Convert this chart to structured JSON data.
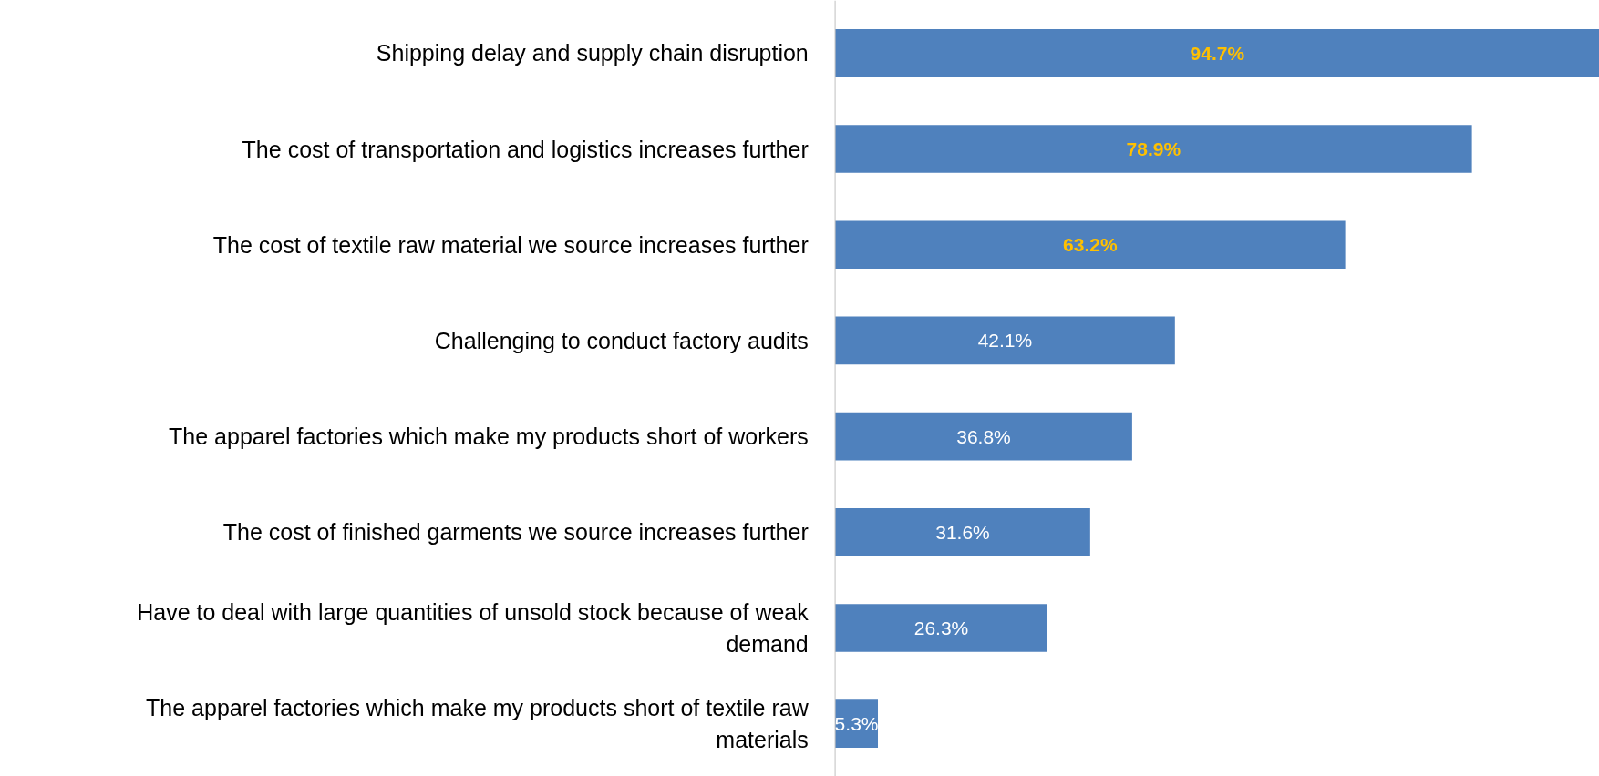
{
  "chart_data": {
    "type": "bar",
    "orientation": "horizontal",
    "categories": [
      "Shipping delay and supply chain disruption",
      "The cost of transportation and logistics increases further",
      "The cost of textile raw material we source increases further",
      "Challenging to conduct factory audits",
      "The apparel factories which make my products short of workers",
      "The cost of finished garments we source increases further",
      "Have to deal with large quantities of unsold stock because of weak demand",
      "The apparel factories which make my products short of textile raw materials"
    ],
    "values": [
      94.7,
      78.9,
      63.2,
      42.1,
      36.8,
      31.6,
      26.3,
      5.3
    ],
    "value_labels": [
      "94.7%",
      "78.9%",
      "63.2%",
      "42.1%",
      "36.8%",
      "31.6%",
      "26.3%",
      "5.3%"
    ],
    "color": "#4f81bd",
    "grid": false
  }
}
